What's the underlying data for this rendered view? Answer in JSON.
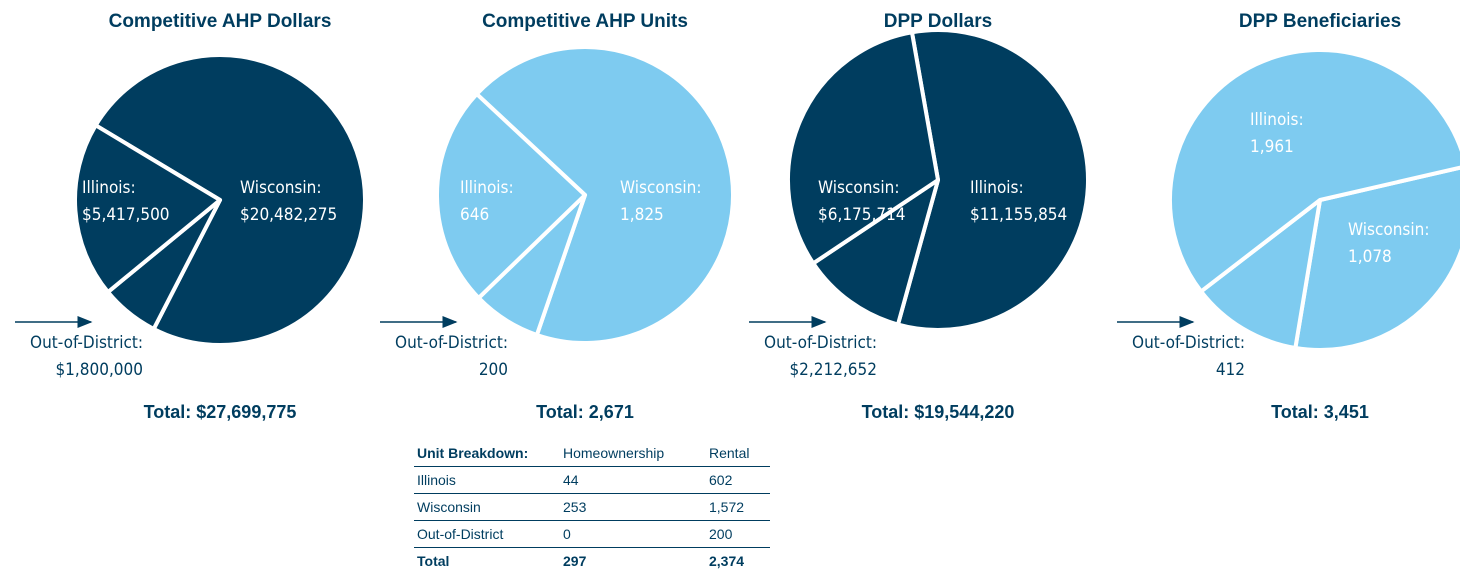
{
  "chart_data": [
    {
      "type": "pie",
      "title": "Competitive AHP Dollars",
      "categories": [
        "Wisconsin:",
        "Out-of-District:",
        "Illinois:"
      ],
      "values": [
        20482275,
        1800000,
        5417500
      ],
      "value_labels": [
        "$20,482,275",
        "$1,800,000",
        "$5,417,500"
      ],
      "color": "#003d5f",
      "total": "Total: $27,699,775"
    },
    {
      "type": "pie",
      "title": "Competitive AHP Units",
      "categories": [
        "Wisconsin:",
        "Out-of-District:",
        "Illinois:"
      ],
      "values": [
        1825,
        200,
        646
      ],
      "value_labels": [
        "1,825",
        "200",
        "646"
      ],
      "color": "#7ecbf0",
      "total": "Total: 2,671"
    },
    {
      "type": "pie",
      "title": "DPP Dollars",
      "categories": [
        "Illinois:",
        "Out-of-District:",
        "Wisconsin:"
      ],
      "values": [
        11155854,
        2212652,
        6175714
      ],
      "value_labels": [
        "$11,155,854",
        "$2,212,652",
        "$6,175,714"
      ],
      "color": "#003d5f",
      "total": "Total: $19,544,220"
    },
    {
      "type": "pie",
      "title": "DPP Beneficiaries",
      "categories": [
        "Wisconsin:",
        "Out-of-District:",
        "Illinois:"
      ],
      "values": [
        1078,
        412,
        1961
      ],
      "value_labels": [
        "1,078",
        "412",
        "1,961"
      ],
      "color": "#7ecbf0",
      "total": "Total: 3,451"
    }
  ],
  "table": {
    "header": [
      "Unit Breakdown:",
      "Homeownership",
      "Rental"
    ],
    "rows": [
      [
        "Illinois",
        "44",
        "602"
      ],
      [
        "Wisconsin",
        "253",
        "1,572"
      ],
      [
        "Out-of-District",
        "0",
        "200"
      ],
      [
        "Total",
        "297",
        "2,374"
      ]
    ]
  }
}
